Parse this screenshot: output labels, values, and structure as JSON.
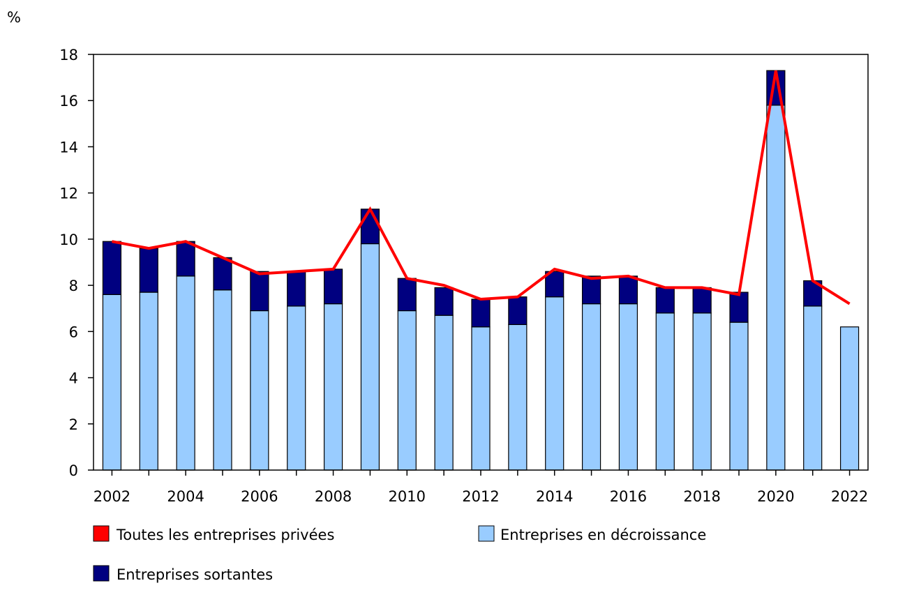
{
  "chart_data": {
    "type": "bar",
    "ylabel": "%",
    "ylim": [
      0,
      18
    ],
    "yticks": [
      0,
      2,
      4,
      6,
      8,
      10,
      12,
      14,
      16,
      18
    ],
    "years": [
      2002,
      2003,
      2004,
      2005,
      2006,
      2007,
      2008,
      2009,
      2010,
      2011,
      2012,
      2013,
      2014,
      2015,
      2016,
      2017,
      2018,
      2019,
      2020,
      2021,
      2022
    ],
    "xtick_labels": [
      "2002",
      "2004",
      "2006",
      "2008",
      "2010",
      "2012",
      "2014",
      "2016",
      "2018",
      "2020",
      "2022"
    ],
    "grid": false,
    "legend_position": "bottom",
    "series": [
      {
        "name": "Toutes les entreprises privées",
        "type": "line",
        "color": "#ff0000",
        "values": [
          9.9,
          9.6,
          9.9,
          9.2,
          8.5,
          8.6,
          8.7,
          11.3,
          8.3,
          8.0,
          7.4,
          7.5,
          8.7,
          8.3,
          8.4,
          7.9,
          7.9,
          7.6,
          17.3,
          8.2,
          7.2
        ]
      },
      {
        "name": "Entreprises en décroissance",
        "type": "bar",
        "stack": "base",
        "color": "#99ccff",
        "values": [
          7.6,
          7.7,
          8.4,
          7.8,
          6.9,
          7.1,
          7.2,
          9.8,
          6.9,
          6.7,
          6.2,
          6.3,
          7.5,
          7.2,
          7.2,
          6.8,
          6.8,
          6.4,
          15.8,
          7.1,
          6.2
        ]
      },
      {
        "name": "Entreprises sortantes",
        "type": "bar",
        "stack": "top",
        "color": "#000080",
        "values": [
          2.3,
          1.9,
          1.5,
          1.4,
          1.7,
          1.5,
          1.5,
          1.5,
          1.4,
          1.2,
          1.2,
          1.2,
          1.1,
          1.2,
          1.2,
          1.1,
          1.1,
          1.3,
          1.5,
          1.1,
          null
        ]
      }
    ]
  }
}
